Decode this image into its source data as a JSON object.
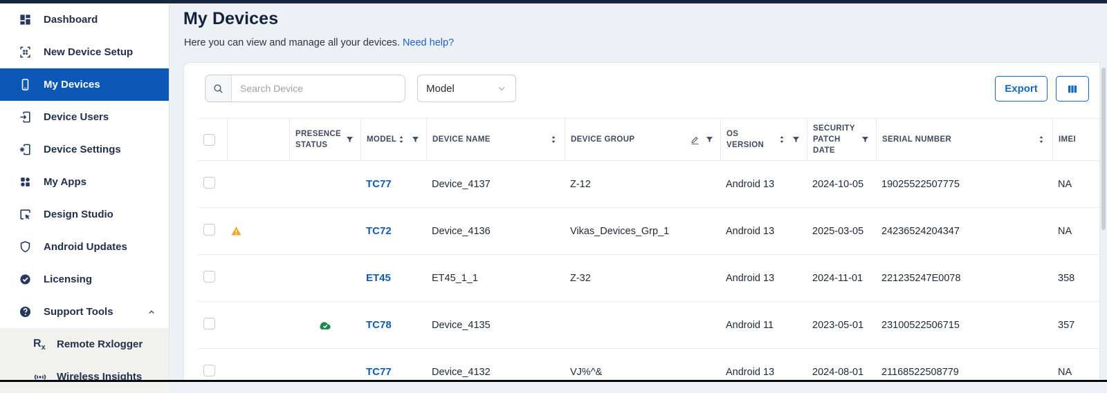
{
  "colors": {
    "accent_blue": "#1467c2",
    "selected_item_blue": "#0d57b7",
    "link_blue": "#1b63c1",
    "warning_orange": "#f2a52a",
    "online_green": "#1c8a4b"
  },
  "sidebar": {
    "items": [
      {
        "label": "Dashboard",
        "icon": "dashboard-icon",
        "selected": false
      },
      {
        "label": "New Device Setup",
        "icon": "qr-code-icon",
        "selected": false
      },
      {
        "label": "My Devices",
        "icon": "phone-icon",
        "selected": true
      },
      {
        "label": "Device Users",
        "icon": "device-users-icon",
        "selected": false
      },
      {
        "label": "Device Settings",
        "icon": "device-settings-icon",
        "selected": false
      },
      {
        "label": "My Apps",
        "icon": "apps-icon",
        "selected": false
      },
      {
        "label": "Design Studio",
        "icon": "design-studio-icon",
        "selected": false
      },
      {
        "label": "Android Updates",
        "icon": "shield-icon",
        "selected": false
      },
      {
        "label": "Licensing",
        "icon": "badge-check-icon",
        "selected": false
      },
      {
        "label": "Support Tools",
        "icon": "help-circle-icon",
        "selected": false,
        "expanded": true
      }
    ],
    "subitems": [
      {
        "label": "Remote Rxlogger",
        "icon": "rx-icon"
      },
      {
        "label": "Wireless Insights",
        "icon": "antenna-icon"
      }
    ]
  },
  "header": {
    "title": "My Devices",
    "subtitle": "Here you can view and manage all your devices.",
    "help_link": "Need help?"
  },
  "toolbar": {
    "search_placeholder": "Search Device",
    "search_value": "",
    "filter_label": "Model",
    "export_label": "Export"
  },
  "table": {
    "columns": [
      {
        "label": "",
        "type": "checkbox"
      },
      {
        "label": "",
        "type": "alert"
      },
      {
        "label": "PRESENCE STATUS",
        "filter": true
      },
      {
        "label": "MODEL",
        "sort": true,
        "filter": true
      },
      {
        "label": "DEVICE NAME",
        "sort": true
      },
      {
        "label": "DEVICE GROUP",
        "edit": true,
        "filter": true
      },
      {
        "label": "OS VERSION",
        "sort": true,
        "filter": true
      },
      {
        "label": "SECURITY PATCH DATE",
        "filter": true
      },
      {
        "label": "SERIAL NUMBER",
        "sort": true
      },
      {
        "label": "IMEI"
      }
    ],
    "rows": [
      {
        "alert": "",
        "presence": "",
        "model": "TC77",
        "name": "Device_4137",
        "group": "Z-12",
        "os": "Android 13",
        "patch": "2024-10-05",
        "serial": "19025522507775",
        "imei": "NA"
      },
      {
        "alert": "warning",
        "presence": "",
        "model": "TC72",
        "name": "Device_4136",
        "group": "Vikas_Devices_Grp_1",
        "os": "Android 13",
        "patch": "2025-03-05",
        "serial": "24236524204347",
        "imei": "NA"
      },
      {
        "alert": "",
        "presence": "",
        "model": "ET45",
        "name": "ET45_1_1",
        "group": "Z-32",
        "os": "Android 13",
        "patch": "2024-11-01",
        "serial": "221235247E0078",
        "imei": "358"
      },
      {
        "alert": "",
        "presence": "online",
        "model": "TC78",
        "name": "Device_4135",
        "group": "",
        "os": "Android 11",
        "patch": "2023-05-01",
        "serial": "23100522506715",
        "imei": "357"
      },
      {
        "alert": "",
        "presence": "",
        "model": "TC77",
        "name": "Device_4132",
        "group": "VJ%^&",
        "os": "Android 13",
        "patch": "2024-08-01",
        "serial": "21168522508779",
        "imei": "NA"
      }
    ]
  }
}
